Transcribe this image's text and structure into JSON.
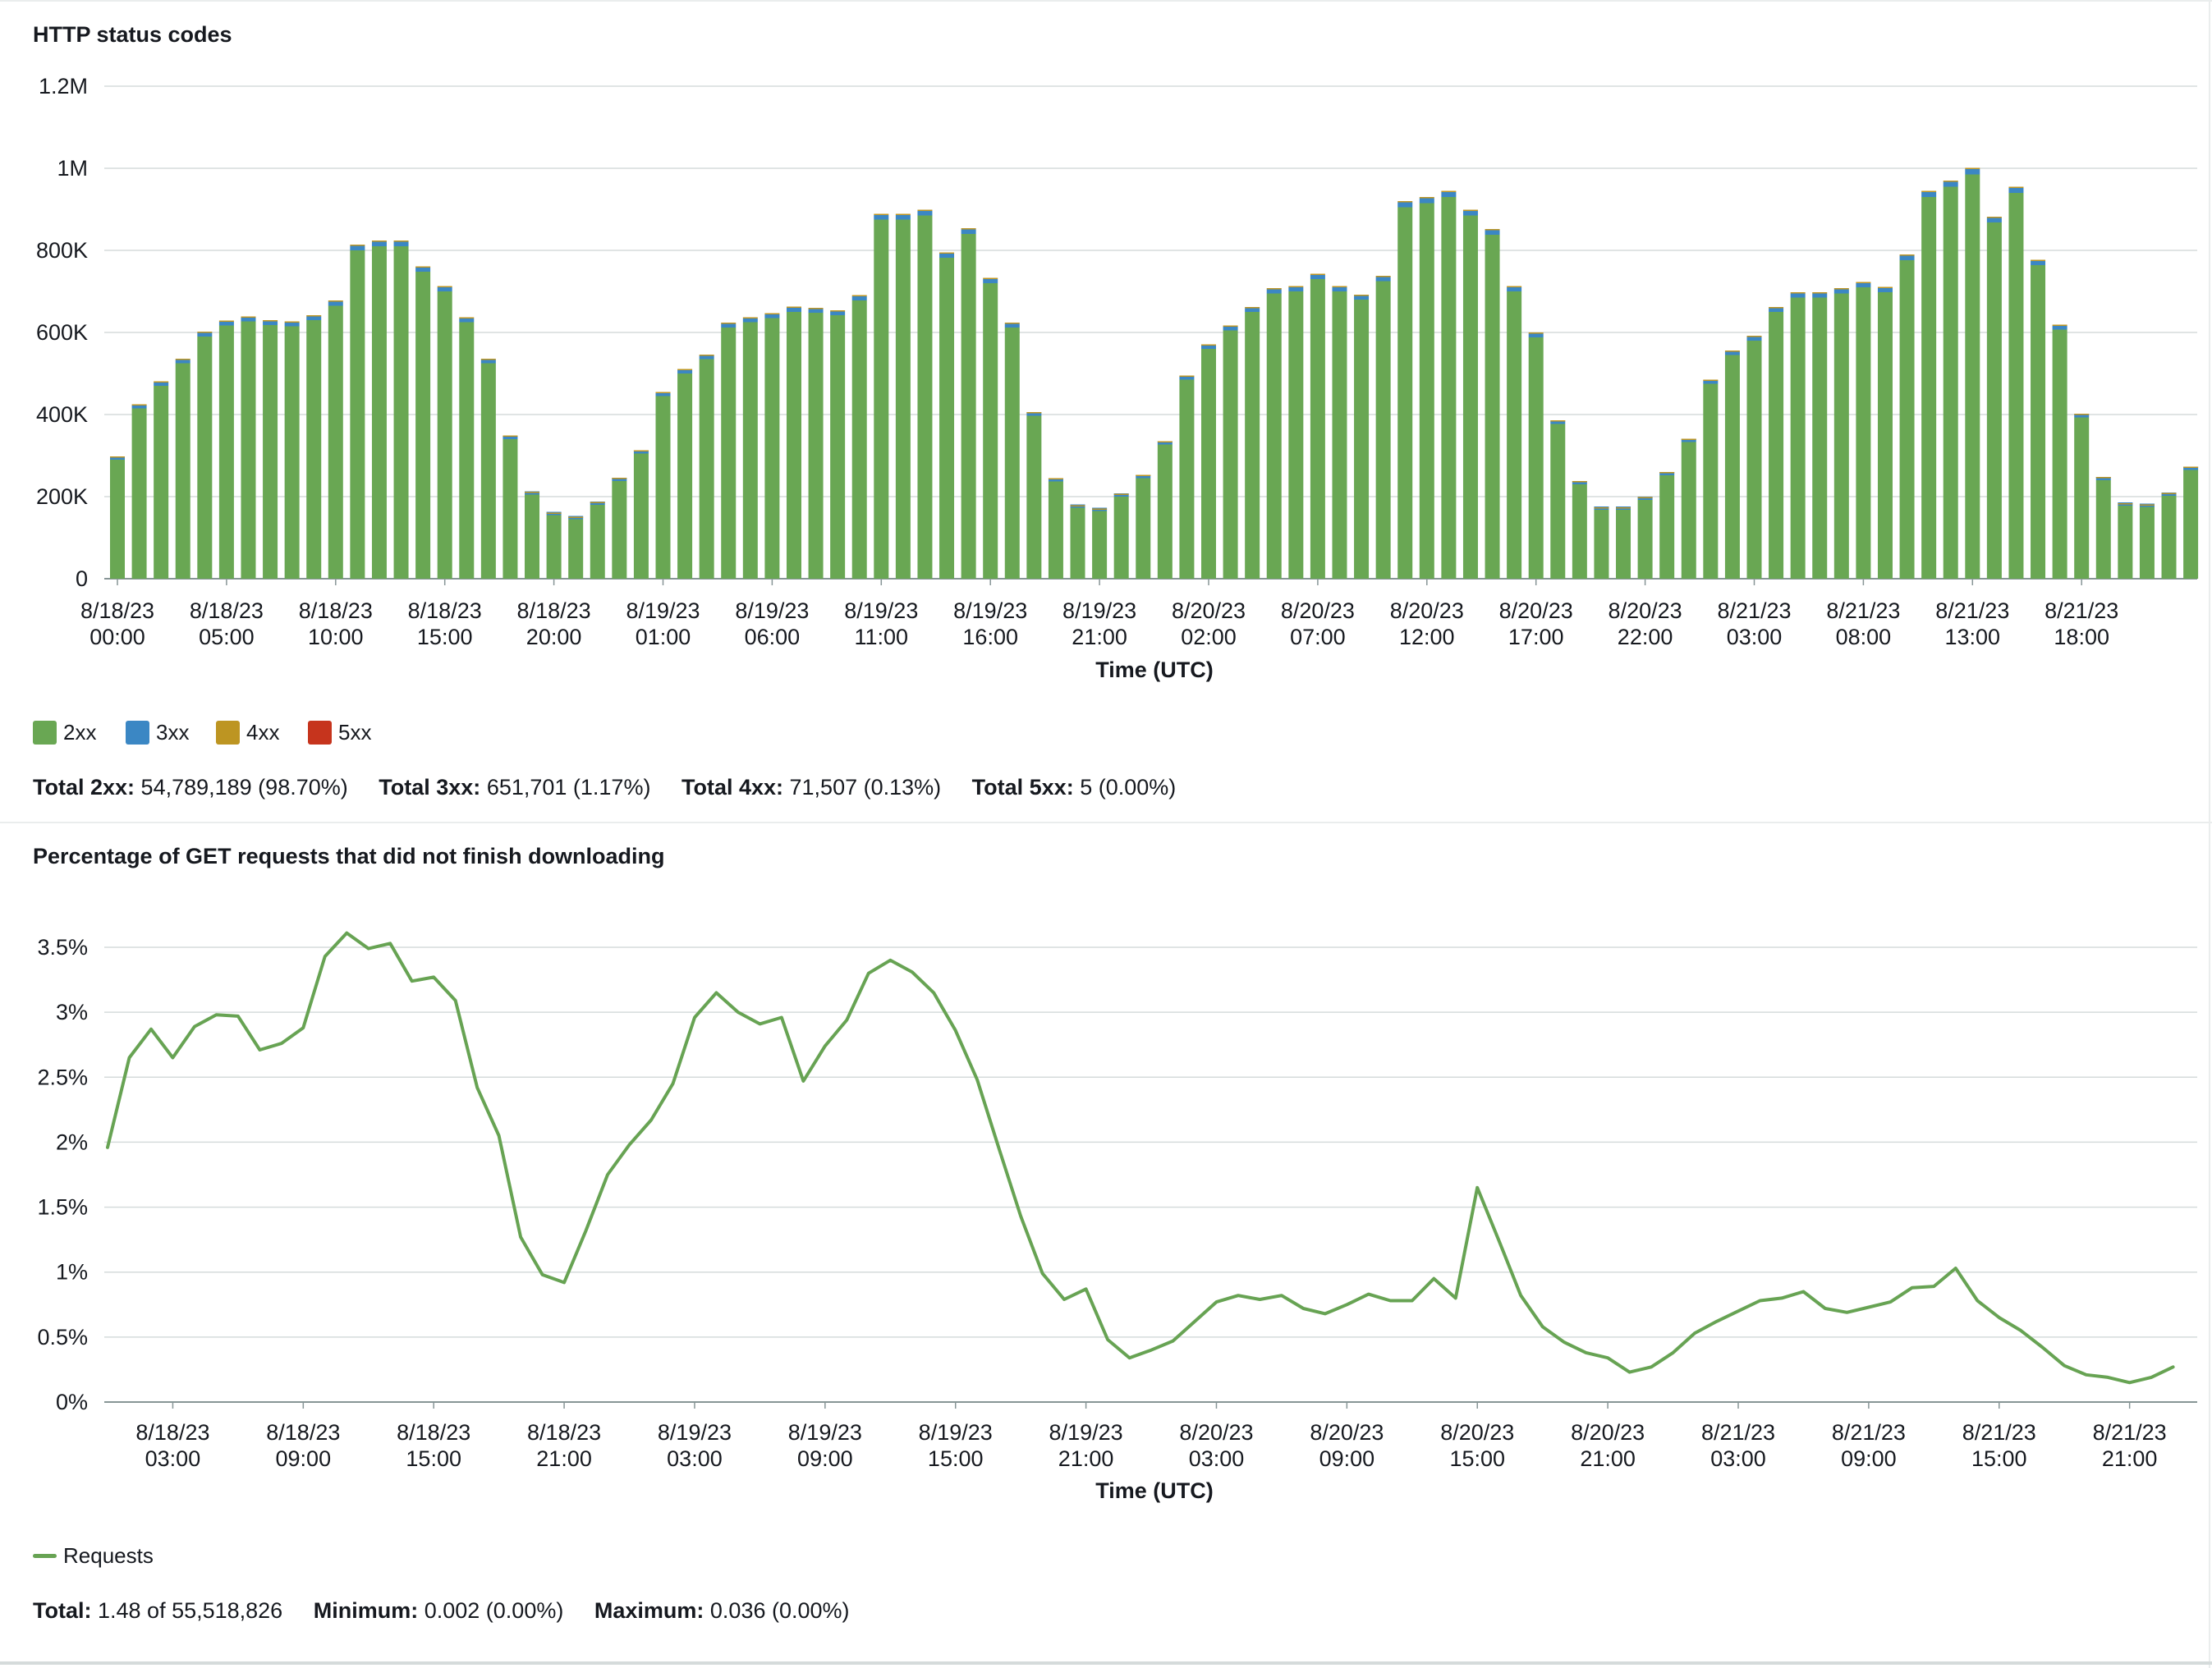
{
  "colors": {
    "2xx": "#69a753",
    "3xx": "#3b87c4",
    "4xx": "#bd9522",
    "5xx": "#c6341d",
    "line": "#67a353",
    "grid": "#d5dbdb",
    "text": "#16191f"
  },
  "panel1": {
    "title": "HTTP status codes",
    "legend": [
      {
        "label": "2xx",
        "color": "#69a753",
        "icon": "square-swatch"
      },
      {
        "label": "3xx",
        "color": "#3b87c4",
        "icon": "square-swatch"
      },
      {
        "label": "4xx",
        "color": "#bd9522",
        "icon": "square-swatch"
      },
      {
        "label": "5xx",
        "color": "#c6341d",
        "icon": "square-swatch"
      }
    ],
    "totals": [
      {
        "key": "Total 2xx:",
        "value": "54,789,189 (98.70%)"
      },
      {
        "key": "Total 3xx:",
        "value": "651,701 (1.17%)"
      },
      {
        "key": "Total 4xx:",
        "value": "71,507 (0.13%)"
      },
      {
        "key": "Total 5xx:",
        "value": "5 (0.00%)"
      }
    ]
  },
  "panel2": {
    "title": "Percentage of GET requests that did not finish downloading",
    "legend": [
      {
        "label": "Requests",
        "color": "#67a353",
        "icon": "line-swatch"
      }
    ],
    "totals": [
      {
        "key": "Total:",
        "value": "1.48 of 55,518,826"
      },
      {
        "key": "Minimum:",
        "value": "0.002 (0.00%)"
      },
      {
        "key": "Maximum:",
        "value": "0.036 (0.00%)"
      }
    ]
  },
  "chart_data": [
    {
      "type": "bar",
      "stacked": true,
      "title": "HTTP status codes",
      "xlabel": "Time (UTC)",
      "ylabel": "",
      "ylim": [
        0,
        1200000
      ],
      "yticks": [
        0,
        200000,
        400000,
        600000,
        800000,
        1000000,
        1200000
      ],
      "ytick_labels": [
        "0",
        "200K",
        "400K",
        "600K",
        "800K",
        "1M",
        "1.2M"
      ],
      "xtick_every": 5,
      "xtick_labels": [
        [
          "8/18/23",
          "00:00"
        ],
        [
          "8/18/23",
          "05:00"
        ],
        [
          "8/18/23",
          "10:00"
        ],
        [
          "8/18/23",
          "15:00"
        ],
        [
          "8/18/23",
          "20:00"
        ],
        [
          "8/19/23",
          "01:00"
        ],
        [
          "8/19/23",
          "06:00"
        ],
        [
          "8/19/23",
          "11:00"
        ],
        [
          "8/19/23",
          "16:00"
        ],
        [
          "8/19/23",
          "21:00"
        ],
        [
          "8/20/23",
          "02:00"
        ],
        [
          "8/20/23",
          "07:00"
        ],
        [
          "8/20/23",
          "12:00"
        ],
        [
          "8/20/23",
          "17:00"
        ],
        [
          "8/20/23",
          "22:00"
        ],
        [
          "8/21/23",
          "03:00"
        ],
        [
          "8/21/23",
          "08:00"
        ],
        [
          "8/21/23",
          "13:00"
        ],
        [
          "8/21/23",
          "18:00"
        ]
      ],
      "grid": true,
      "legend_position": "bottom-left",
      "series": [
        {
          "name": "2xx",
          "color": "#69a753",
          "values": [
            290000,
            415000,
            470000,
            525000,
            590000,
            617000,
            627000,
            618000,
            615000,
            630000,
            665000,
            800000,
            810000,
            810000,
            748000,
            700000,
            625000,
            525000,
            340000,
            205000,
            155000,
            145000,
            180000,
            238000,
            305000,
            445000,
            500000,
            535000,
            612000,
            625000,
            635000,
            650000,
            648000,
            642000,
            678000,
            875000,
            875000,
            885000,
            782000,
            840000,
            720000,
            612000,
            397000,
            237000,
            173000,
            165000,
            200000,
            245000,
            327000,
            485000,
            560000,
            605000,
            650000,
            695000,
            700000,
            730000,
            700000,
            680000,
            725000,
            905000,
            915000,
            930000,
            885000,
            838000,
            700000,
            588000,
            377000,
            230000,
            168000,
            168000,
            192000,
            252000,
            333000,
            475000,
            545000,
            580000,
            650000,
            685000,
            685000,
            695000,
            710000,
            698000,
            776000,
            930000,
            955000,
            985000,
            868000,
            940000,
            764000,
            607000,
            393000,
            240000,
            178000,
            175000,
            202000,
            265000
          ]
        },
        {
          "name": "3xx",
          "color": "#3b87c4",
          "values": [
            5000,
            7000,
            8000,
            8000,
            9000,
            9000,
            9000,
            9000,
            9000,
            9000,
            10000,
            11000,
            11000,
            11000,
            10000,
            10000,
            9000,
            8000,
            6000,
            4000,
            3000,
            3000,
            4000,
            5000,
            5000,
            7000,
            8000,
            8000,
            9000,
            9000,
            9000,
            10000,
            9000,
            9000,
            10000,
            11000,
            11000,
            11000,
            10000,
            11000,
            10000,
            9000,
            6000,
            5000,
            3000,
            3000,
            4000,
            5000,
            5000,
            7000,
            8000,
            9000,
            9000,
            10000,
            10000,
            10000,
            10000,
            9000,
            10000,
            12000,
            12000,
            12000,
            11000,
            11000,
            10000,
            9000,
            6000,
            5000,
            3000,
            3000,
            4000,
            5000,
            5000,
            7000,
            8000,
            9000,
            9000,
            10000,
            10000,
            10000,
            10000,
            10000,
            11000,
            12000,
            12000,
            13000,
            11000,
            12000,
            10000,
            9000,
            6000,
            5000,
            3000,
            3000,
            4000,
            5000
          ]
        },
        {
          "name": "4xx",
          "color": "#bd9522",
          "values": [
            1000,
            1000,
            1000,
            1000,
            1000,
            1000,
            1000,
            1000,
            1000,
            1000,
            1000,
            1000,
            1000,
            1000,
            1000,
            1000,
            1000,
            1000,
            1000,
            1000,
            1000,
            1000,
            1000,
            1000,
            1000,
            1000,
            1000,
            1000,
            1000,
            1000,
            1000,
            1000,
            1000,
            1000,
            1000,
            1000,
            1000,
            1000,
            1000,
            1000,
            1000,
            1000,
            1000,
            1000,
            1000,
            1000,
            1000,
            1000,
            1000,
            1000,
            1000,
            1000,
            1000,
            1000,
            1000,
            1000,
            1000,
            1000,
            1000,
            1000,
            1000,
            1000,
            1000,
            1000,
            1000,
            1000,
            1000,
            1000,
            1000,
            1000,
            1000,
            1000,
            1000,
            1000,
            1000,
            1000,
            1000,
            1000,
            1000,
            1000,
            1000,
            1000,
            1000,
            1000,
            1000,
            1000,
            1000,
            1000,
            1000,
            1000,
            1000,
            1000,
            1000,
            1000,
            1000,
            1000
          ]
        },
        {
          "name": "5xx",
          "color": "#c6341d",
          "values": [
            0,
            0,
            0,
            0,
            0,
            0,
            0,
            0,
            0,
            0,
            0,
            0,
            0,
            0,
            0,
            0,
            0,
            0,
            0,
            0,
            0,
            0,
            0,
            0,
            0,
            0,
            0,
            0,
            0,
            0,
            0,
            0,
            0,
            0,
            0,
            0,
            0,
            0,
            0,
            0,
            0,
            0,
            0,
            0,
            0,
            0,
            0,
            0,
            0,
            0,
            0,
            0,
            0,
            0,
            0,
            0,
            0,
            0,
            0,
            0,
            0,
            0,
            0,
            0,
            0,
            0,
            0,
            0,
            0,
            0,
            0,
            0,
            0,
            0,
            0,
            0,
            0,
            0,
            0,
            0,
            0,
            0,
            0,
            0,
            0,
            0,
            0,
            0,
            0,
            0,
            0,
            0,
            0,
            0,
            0,
            0
          ]
        }
      ]
    },
    {
      "type": "line",
      "title": "Percentage of GET requests that did not finish downloading",
      "xlabel": "Time (UTC)",
      "ylabel": "",
      "ylim": [
        0,
        3.5
      ],
      "yticks": [
        0,
        0.5,
        1,
        1.5,
        2,
        2.5,
        3,
        3.5
      ],
      "ytick_labels": [
        "0%",
        "0.5%",
        "1%",
        "1.5%",
        "2%",
        "2.5%",
        "3%",
        "3.5%"
      ],
      "xtick_first_index": 3,
      "xtick_every": 6,
      "xtick_labels": [
        [
          "8/18/23",
          "03:00"
        ],
        [
          "8/18/23",
          "09:00"
        ],
        [
          "8/18/23",
          "15:00"
        ],
        [
          "8/18/23",
          "21:00"
        ],
        [
          "8/19/23",
          "03:00"
        ],
        [
          "8/19/23",
          "09:00"
        ],
        [
          "8/19/23",
          "15:00"
        ],
        [
          "8/19/23",
          "21:00"
        ],
        [
          "8/20/23",
          "03:00"
        ],
        [
          "8/20/23",
          "09:00"
        ],
        [
          "8/20/23",
          "15:00"
        ],
        [
          "8/20/23",
          "21:00"
        ],
        [
          "8/21/23",
          "03:00"
        ],
        [
          "8/21/23",
          "09:00"
        ],
        [
          "8/21/23",
          "15:00"
        ],
        [
          "8/21/23",
          "21:00"
        ]
      ],
      "grid": true,
      "legend_position": "bottom-left",
      "series": [
        {
          "name": "Requests",
          "color": "#67a353",
          "values": [
            1.96,
            2.65,
            2.87,
            2.65,
            2.89,
            2.98,
            2.97,
            2.71,
            2.76,
            2.88,
            3.43,
            3.61,
            3.49,
            3.53,
            3.24,
            3.27,
            3.09,
            2.42,
            2.05,
            1.27,
            0.98,
            0.92,
            1.32,
            1.75,
            1.98,
            2.17,
            2.45,
            2.96,
            3.15,
            3.0,
            2.91,
            2.96,
            2.47,
            2.74,
            2.94,
            3.3,
            3.4,
            3.31,
            3.15,
            2.86,
            2.48,
            1.95,
            1.43,
            0.99,
            0.79,
            0.87,
            0.48,
            0.34,
            0.4,
            0.47,
            0.62,
            0.77,
            0.82,
            0.79,
            0.82,
            0.72,
            0.68,
            0.75,
            0.83,
            0.78,
            0.78,
            0.95,
            0.8,
            1.65,
            1.24,
            0.82,
            0.58,
            0.46,
            0.38,
            0.34,
            0.23,
            0.27,
            0.38,
            0.53,
            0.62,
            0.7,
            0.78,
            0.8,
            0.85,
            0.72,
            0.69,
            0.73,
            0.77,
            0.88,
            0.89,
            1.03,
            0.78,
            0.65,
            0.55,
            0.42,
            0.28,
            0.21,
            0.19,
            0.15,
            0.19,
            0.27
          ]
        }
      ]
    }
  ]
}
